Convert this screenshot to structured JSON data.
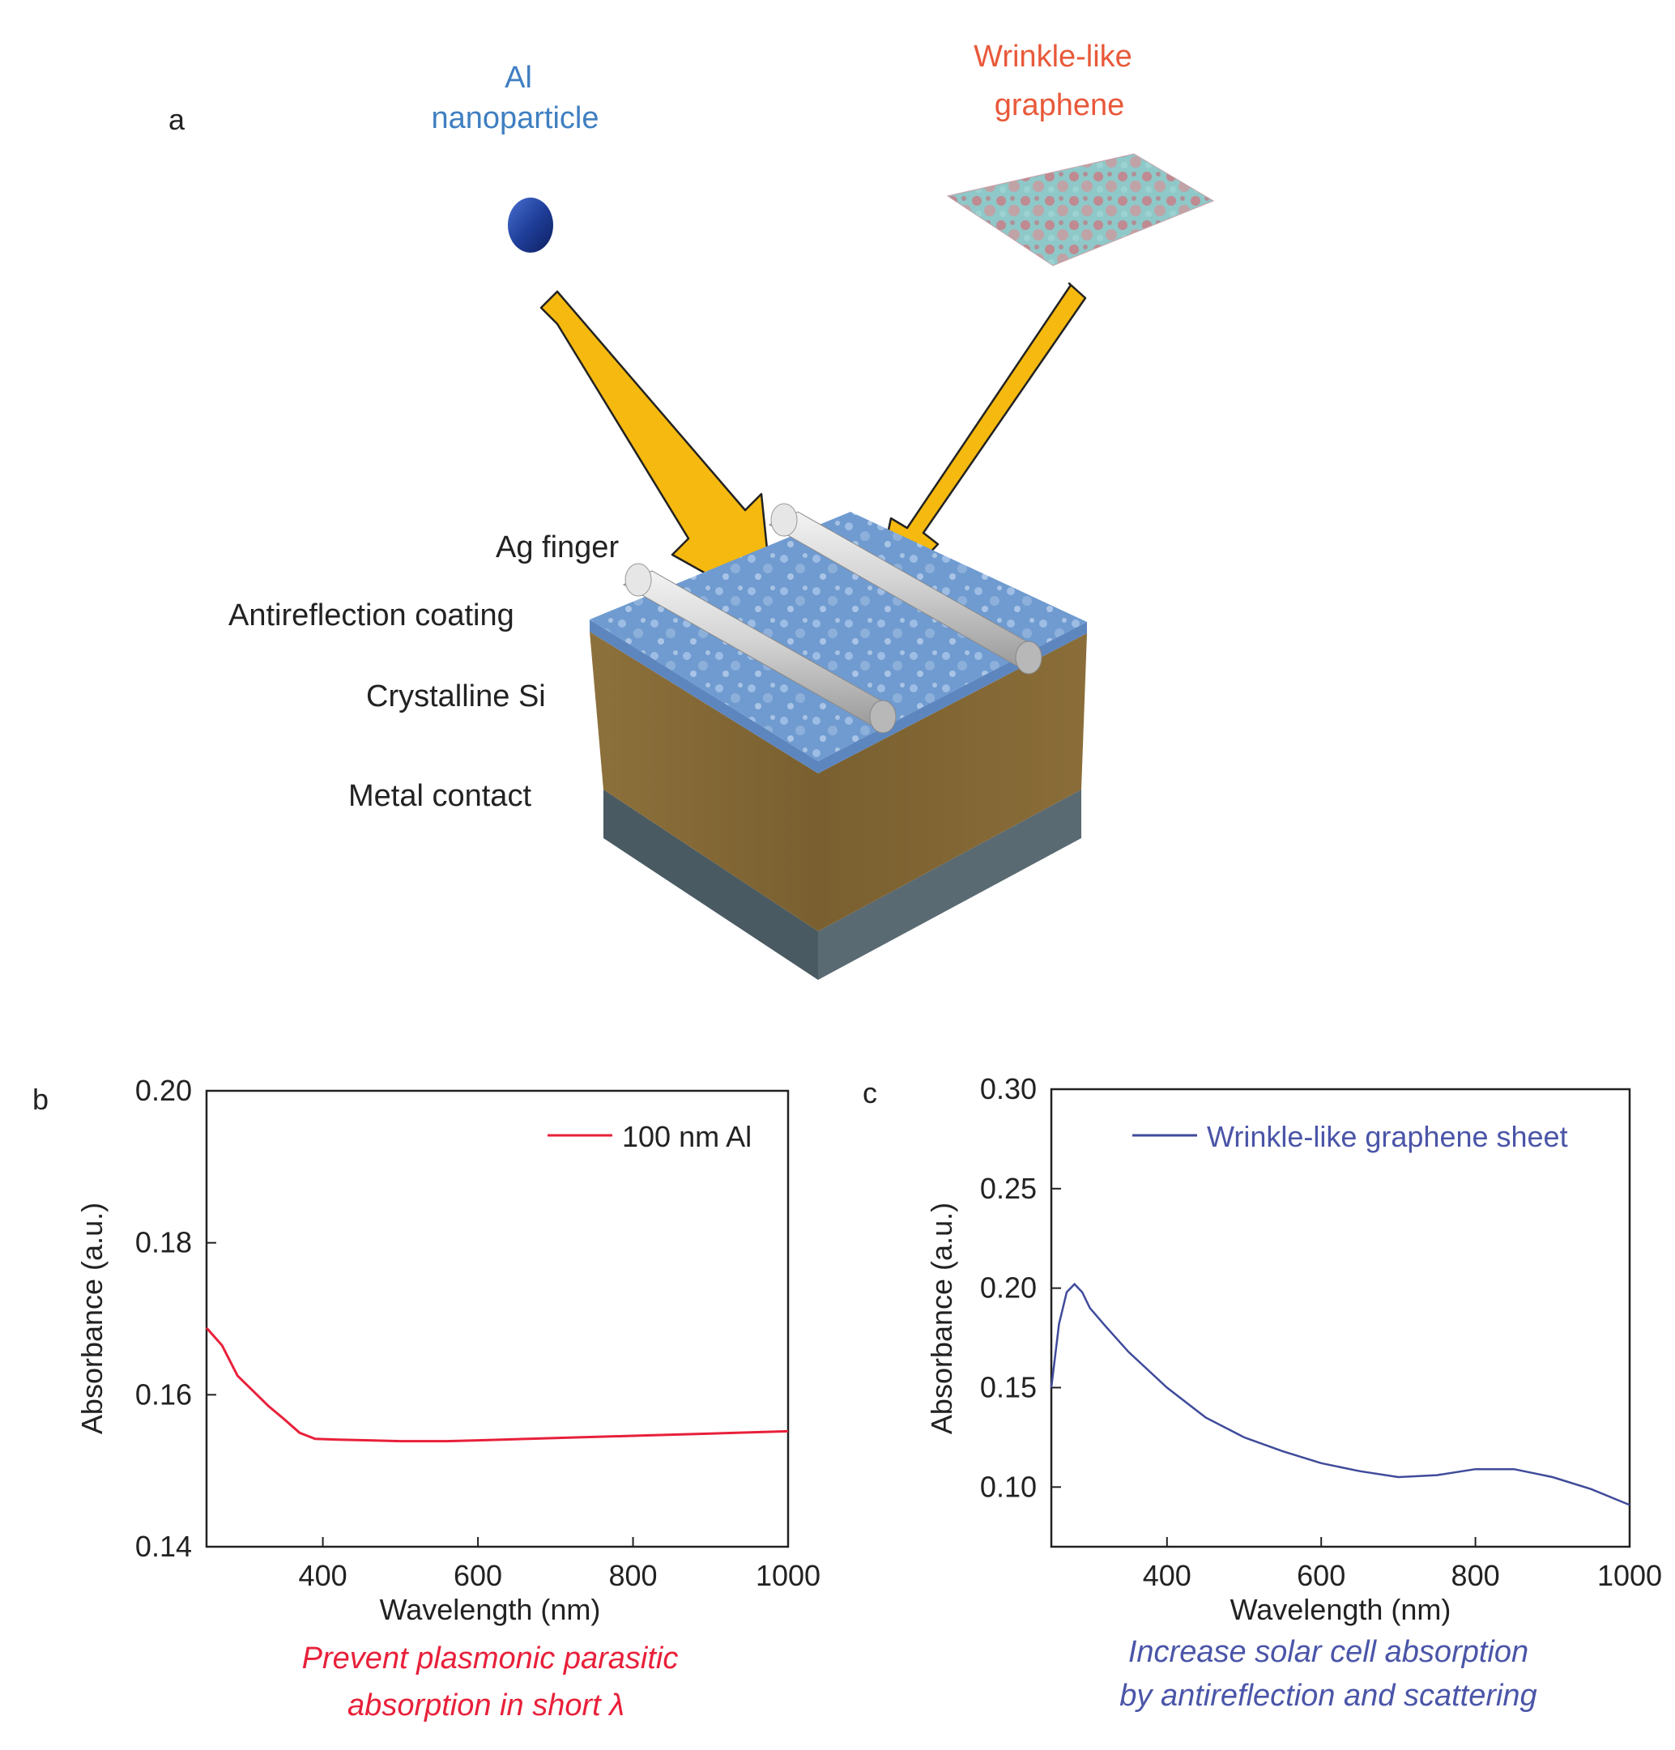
{
  "panel_a": {
    "letter": "a",
    "al_label_line1": "Al",
    "al_label_line2": "nanoparticle",
    "graphene_label_line1": "Wrinkle-like",
    "graphene_label_line2": "graphene",
    "layer_labels": [
      "Ag finger",
      "Antireflection coating",
      "Crystalline Si",
      "Metal contact"
    ],
    "colors": {
      "al_label": "#3f7fc1",
      "graphene_label": "#e8593a",
      "arrow": "#f5b90f",
      "si_body": "#8b6f3a",
      "contact": "#4a5a62",
      "coating": "#6f9bd0",
      "nanoparticle": "#1f3f9a"
    }
  },
  "chart_data": [
    {
      "panel": "b",
      "type": "line",
      "xlabel": "Wavelength (nm)",
      "ylabel": "Absorbance (a.u.)",
      "xlim": [
        250,
        1000
      ],
      "ylim": [
        0.14,
        0.2
      ],
      "xticks": [
        400,
        600,
        800,
        1000
      ],
      "yticks": [
        0.14,
        0.16,
        0.18,
        0.2
      ],
      "xtick_labels": [
        "400",
        "600",
        "800",
        "1000"
      ],
      "ytick_labels": [
        "0.14",
        "0.16",
        "0.18",
        "0.20"
      ],
      "legend_position": "top-right",
      "caption_line1": "Prevent plasmonic parasitic",
      "caption_line2": "absorption in short λ",
      "caption_color": "#e8203a",
      "series": [
        {
          "name": "100 nm Al",
          "color": "#e8203a",
          "x": [
            250,
            270,
            290,
            310,
            330,
            350,
            370,
            390,
            420,
            460,
            500,
            560,
            600,
            700,
            800,
            900,
            1000
          ],
          "y": [
            0.1688,
            0.1665,
            0.1625,
            0.1605,
            0.1585,
            0.1568,
            0.155,
            0.1542,
            0.1541,
            0.154,
            0.1539,
            0.1539,
            0.154,
            0.1543,
            0.1546,
            0.1549,
            0.1552
          ]
        }
      ]
    },
    {
      "panel": "c",
      "type": "line",
      "xlabel": "Wavelength (nm)",
      "ylabel": "Absorbance (a.u.)",
      "xlim": [
        250,
        1000
      ],
      "ylim": [
        0.07,
        0.3
      ],
      "xticks": [
        400,
        600,
        800,
        1000
      ],
      "yticks": [
        0.1,
        0.15,
        0.2,
        0.25,
        0.3
      ],
      "xtick_labels": [
        "400",
        "600",
        "800",
        "1000"
      ],
      "ytick_labels": [
        "0.10",
        "0.15",
        "0.20",
        "0.25",
        "0.30"
      ],
      "legend_position": "top-right",
      "caption_line1": "Increase solar cell absorption",
      "caption_line2": "by antireflection and scattering",
      "caption_color": "#4a55a8",
      "series": [
        {
          "name": "Wrinkle-like graphene sheet",
          "color": "#3f4b9a",
          "x": [
            250,
            260,
            270,
            280,
            290,
            300,
            320,
            350,
            400,
            450,
            500,
            550,
            600,
            650,
            700,
            750,
            800,
            850,
            900,
            950,
            1000
          ],
          "y": [
            0.15,
            0.182,
            0.198,
            0.202,
            0.198,
            0.19,
            0.181,
            0.168,
            0.15,
            0.135,
            0.125,
            0.118,
            0.112,
            0.108,
            0.105,
            0.106,
            0.109,
            0.109,
            0.105,
            0.099,
            0.091
          ]
        }
      ]
    }
  ]
}
